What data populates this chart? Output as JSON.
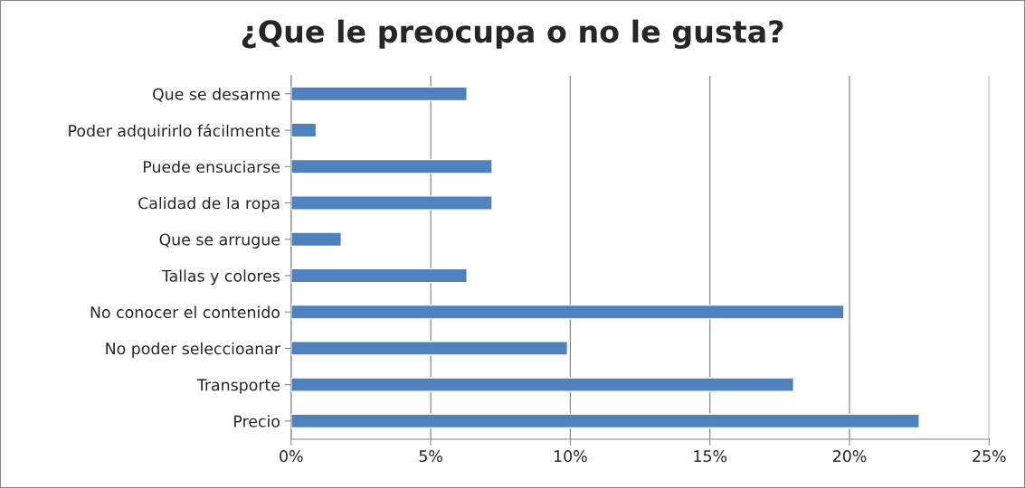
{
  "chart_data": {
    "type": "bar",
    "orientation": "horizontal",
    "title": "¿Que le preocupa o no le gusta?",
    "categories": [
      "Que se desarme",
      "Poder adquirirlo fácilmente",
      "Puede ensuciarse",
      "Calidad de la ropa",
      "Que se arrugue",
      "Tallas y colores",
      "No conocer el contenido",
      "No poder seleccioanar",
      "Transporte",
      "Precio"
    ],
    "values": [
      6.3,
      0.9,
      7.2,
      7.2,
      1.8,
      6.3,
      19.8,
      9.9,
      18.0,
      22.5
    ],
    "color": "#4f81bd",
    "xlim": [
      0,
      25
    ],
    "xticks": [
      {
        "value": 0,
        "label": "0%"
      },
      {
        "value": 5,
        "label": "5%"
      },
      {
        "value": 10,
        "label": "10%"
      },
      {
        "value": 15,
        "label": "15%"
      },
      {
        "value": 20,
        "label": "20%"
      },
      {
        "value": 25,
        "label": "25%"
      }
    ],
    "grid": "x"
  }
}
